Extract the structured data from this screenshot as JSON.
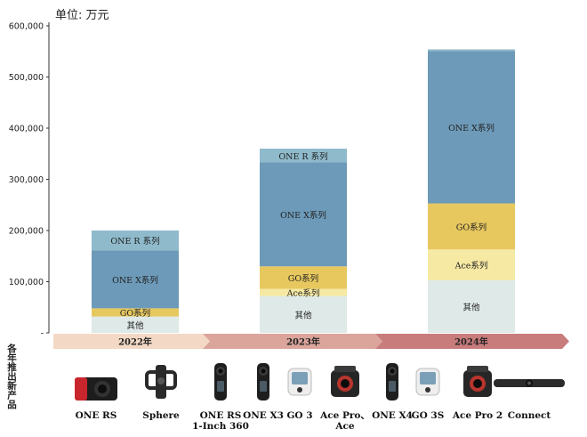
{
  "unit_label": "单位: 万元",
  "side_label": "各年推出新产品",
  "chart_data": {
    "type": "bar",
    "stacked": true,
    "categories": [
      "2022年",
      "2023年",
      "2024年"
    ],
    "ylim": [
      0,
      600000
    ],
    "yticks": [
      0,
      100000,
      200000,
      300000,
      400000,
      500000,
      600000
    ],
    "ytick_labels": [
      "-",
      "100,000",
      "200,000",
      "300,000",
      "400,000",
      "500,000",
      "600,000"
    ],
    "series": [
      {
        "name": "其他",
        "color": "#dfe9e8",
        "values": [
          32000,
          72000,
          103000
        ]
      },
      {
        "name": "Ace系列",
        "color": "#f6e9a3",
        "values": [
          0,
          14000,
          60000
        ]
      },
      {
        "name": "GO系列",
        "color": "#e7c85f",
        "values": [
          16000,
          44000,
          90000
        ]
      },
      {
        "name": "ONE X系列",
        "color": "#6d9ab8",
        "values": [
          113000,
          203000,
          298000
        ]
      },
      {
        "name": "ONE R 系列",
        "color": "#8fbacb",
        "values": [
          39000,
          27000,
          3000
        ]
      }
    ],
    "segment_labels": [
      [
        "其他",
        "",
        "GO系列",
        "ONE X系列",
        "ONE R 系列"
      ],
      [
        "其他",
        "Ace系列",
        "GO系列",
        "ONE X系列",
        "ONE R 系列"
      ],
      [
        "其他",
        "Ace系列",
        "GO系列",
        "ONE X系列",
        "ONE R 系列"
      ]
    ],
    "grid": false,
    "legend": "none"
  },
  "products": [
    {
      "name": "ONE RS",
      "icon": "camera-block-icon"
    },
    {
      "name": "Sphere",
      "icon": "drone-mount-icon"
    },
    {
      "name": "ONE RS\n1-Inch 360",
      "icon": "tall-360-camera-icon"
    },
    {
      "name": "ONE X3",
      "icon": "tall-360-camera-icon"
    },
    {
      "name": "GO 3",
      "icon": "thumb-camera-icon"
    },
    {
      "name": "Ace Pro、\nAce",
      "icon": "action-camera-icon"
    },
    {
      "name": "ONE X4",
      "icon": "tall-360-camera-icon"
    },
    {
      "name": "GO 3S",
      "icon": "thumb-camera-icon"
    },
    {
      "name": "Ace Pro 2",
      "icon": "action-camera-icon"
    },
    {
      "name": "Connect",
      "icon": "webcam-bar-icon"
    }
  ]
}
